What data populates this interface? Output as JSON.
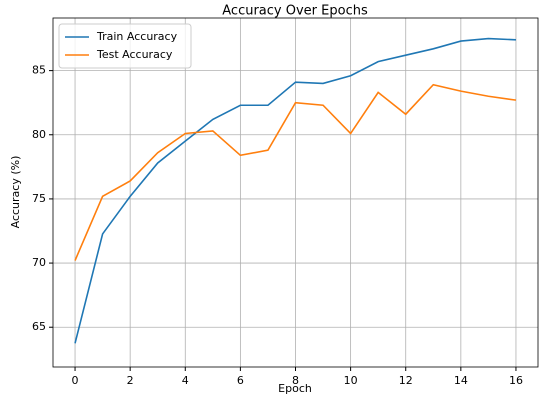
{
  "chart_data": {
    "type": "line",
    "title": "Accuracy Over Epochs",
    "x_label": "Epoch",
    "y_label": "Accuracy (%)",
    "x": [
      0,
      1,
      2,
      3,
      4,
      5,
      6,
      7,
      8,
      9,
      10,
      11,
      12,
      13,
      14,
      15,
      16
    ],
    "series": [
      {
        "name": "Train Accuracy",
        "color": "#1f77b4",
        "values": [
          63.75,
          72.27,
          75.2,
          77.8,
          79.5,
          81.2,
          82.3,
          82.3,
          84.1,
          84.0,
          84.6,
          85.7,
          86.2,
          86.7,
          87.3,
          87.5,
          87.4
        ]
      },
      {
        "name": "Test Accuracy",
        "color": "#ff7f0e",
        "values": [
          70.2,
          75.2,
          76.4,
          78.6,
          80.1,
          80.3,
          78.4,
          78.8,
          82.5,
          82.3,
          80.1,
          83.3,
          81.6,
          83.9,
          83.4,
          83.0,
          82.7
        ]
      }
    ],
    "xlim": [
      -0.8,
      16.8
    ],
    "ylim": [
      61.9,
      89.1
    ],
    "xticks": [
      0,
      2,
      4,
      6,
      8,
      10,
      12,
      14,
      16
    ],
    "yticks": [
      65,
      70,
      75,
      80,
      85
    ],
    "grid": true,
    "legend": "upper-left"
  }
}
